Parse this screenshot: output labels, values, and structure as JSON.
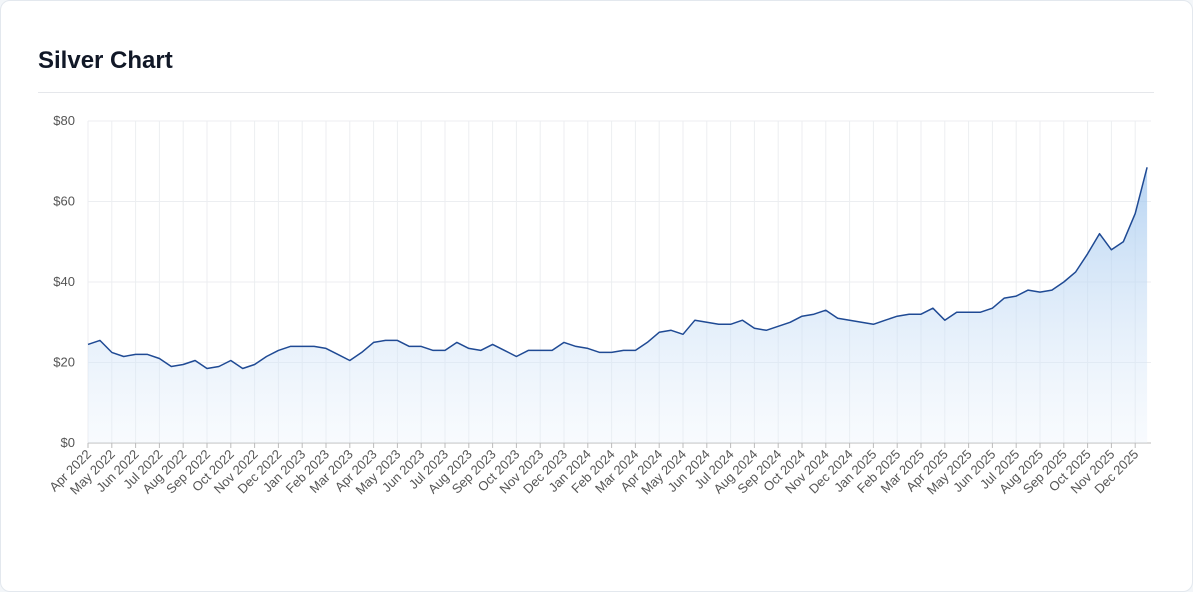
{
  "chart_data": {
    "type": "line",
    "title": "Silver Chart",
    "categories": [
      "Apr 2022",
      null,
      "May 2022",
      null,
      "Jun 2022",
      null,
      "Jul 2022",
      null,
      "Aug 2022",
      null,
      "Sep 2022",
      null,
      "Oct 2022",
      null,
      "Nov 2022",
      null,
      "Dec 2022",
      null,
      "Jan 2023",
      null,
      "Feb 2023",
      null,
      "Mar 2023",
      null,
      "Apr 2023",
      null,
      "May 2023",
      null,
      "Jun 2023",
      null,
      "Jul 2023",
      null,
      "Aug 2023",
      null,
      "Sep 2023",
      null,
      "Oct 2023",
      null,
      "Nov 2023",
      null,
      "Dec 2023",
      null,
      "Jan 2024",
      null,
      "Feb 2024",
      null,
      "Mar 2024",
      null,
      "Apr 2024",
      null,
      "May 2024",
      null,
      "Jun 2024",
      null,
      "Jul 2024",
      null,
      "Aug 2024",
      null,
      "Sep 2024",
      null,
      "Oct 2024",
      null,
      "Nov 2024",
      null,
      "Dec 2024",
      null,
      "Jan 2025",
      null,
      "Feb 2025",
      null,
      "Mar 2025",
      null,
      "Apr 2025",
      null,
      "May 2025",
      null,
      "Jun 2025",
      null,
      "Jul 2025",
      null,
      "Aug 2025",
      null,
      "Sep 2025",
      null,
      "Oct 2025",
      null,
      "Nov 2025",
      null,
      "Dec 2025",
      null
    ],
    "values": [
      24.5,
      25.5,
      22.5,
      21.5,
      22,
      22,
      21,
      19,
      19.5,
      20.5,
      18.5,
      19,
      20.5,
      18.5,
      19.5,
      21.5,
      23,
      24,
      24,
      24,
      23.5,
      22,
      20.5,
      22.5,
      25,
      25.5,
      25.5,
      24,
      24,
      23,
      23,
      25,
      23.5,
      23,
      24.5,
      23,
      21.5,
      23,
      23,
      23,
      25,
      24,
      23.5,
      22.5,
      22.5,
      23,
      23,
      25,
      27.5,
      28,
      27,
      30.5,
      30,
      29.5,
      29.5,
      30.5,
      28.5,
      28,
      29,
      30,
      31.5,
      32,
      33,
      31,
      30.5,
      30,
      29.5,
      30.5,
      31.5,
      32,
      32,
      33.5,
      30.5,
      32.5,
      32.5,
      32.5,
      33.5,
      36,
      36.5,
      38,
      37.5,
      38,
      40,
      42.5,
      47,
      52,
      48,
      50,
      57,
      68.5
    ],
    "color": "#1f4a94",
    "ylim": [
      0,
      80
    ],
    "yticks": [
      {
        "value": 0,
        "label": "$0"
      },
      {
        "value": 20,
        "label": "$20"
      },
      {
        "value": 40,
        "label": "$40"
      },
      {
        "value": 60,
        "label": "$60"
      },
      {
        "value": 80,
        "label": "$80"
      }
    ],
    "grid": true
  }
}
